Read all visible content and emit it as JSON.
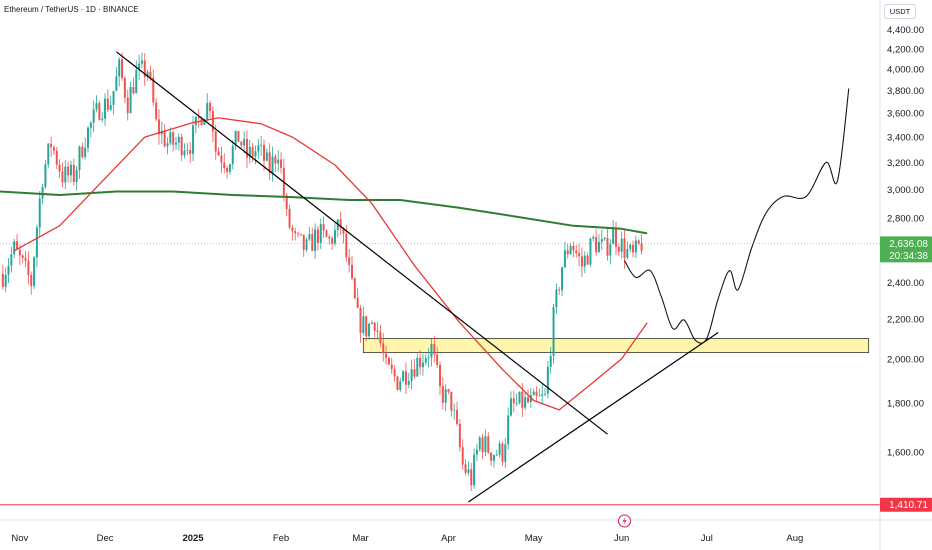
{
  "header": {
    "title": "Ethereum / TetherUS · 1D · BINANCE",
    "currency_button": "USDT"
  },
  "colors": {
    "up": "#26a69a",
    "down": "#ef5350",
    "ma_long": "#2e7d32",
    "ma_short": "#e53935",
    "trendline": "#000000",
    "zone_fill": "#fff59d",
    "support_line": "#f23645",
    "price_tag": "#4caf50",
    "support_tag": "#f23645"
  },
  "price_tags": {
    "current_price": "2,636.08",
    "countdown": "20:34:38",
    "support_price": "1,410.71"
  },
  "icons": {
    "event_marker": "lightning-icon"
  },
  "chart_data": {
    "type": "candlestick",
    "title": "Ethereum / TetherUS · 1D · BINANCE",
    "xlabel": "",
    "ylabel": "",
    "y_scale": "log",
    "ylim": [
      1360,
      4720
    ],
    "xlim": [
      "2024-10-25",
      "2025-08-31"
    ],
    "y_ticks": [
      "1,600.00",
      "1,800.00",
      "2,000.00",
      "2,200.00",
      "2,400.00",
      "2,600.00",
      "2,800.00",
      "3,000.00",
      "3,200.00",
      "3,400.00",
      "3,600.00",
      "3,800.00",
      "4,000.00",
      "4,200.00",
      "4,400.00"
    ],
    "y_tick_values": [
      1600,
      1800,
      2000,
      2200,
      2400,
      2600,
      2800,
      3000,
      3200,
      3400,
      3600,
      3800,
      4000,
      4200,
      4400
    ],
    "x_ticks": [
      {
        "date": "2024-11-01",
        "label": "Nov"
      },
      {
        "date": "2024-12-01",
        "label": "Dec"
      },
      {
        "date": "2025-01-01",
        "label": "2025"
      },
      {
        "date": "2025-02-01",
        "label": "Feb"
      },
      {
        "date": "2025-03-01",
        "label": "Mar"
      },
      {
        "date": "2025-04-01",
        "label": "Apr"
      },
      {
        "date": "2025-05-01",
        "label": "May"
      },
      {
        "date": "2025-06-01",
        "label": "Jun"
      },
      {
        "date": "2025-07-01",
        "label": "Jul"
      },
      {
        "date": "2025-08-01",
        "label": "Aug"
      }
    ],
    "price_path": [
      [
        "2024-10-26",
        2450
      ],
      [
        "2024-10-30",
        2600
      ],
      [
        "2024-11-05",
        2400
      ],
      [
        "2024-11-09",
        3100
      ],
      [
        "2024-11-12",
        3350
      ],
      [
        "2024-11-16",
        3100
      ],
      [
        "2024-11-20",
        3100
      ],
      [
        "2024-11-24",
        3400
      ],
      [
        "2024-11-29",
        3650
      ],
      [
        "2024-12-03",
        3700
      ],
      [
        "2024-12-06",
        4000
      ],
      [
        "2024-12-09",
        3700
      ],
      [
        "2024-12-12",
        3950
      ],
      [
        "2024-12-16",
        4000
      ],
      [
        "2024-12-19",
        3500
      ],
      [
        "2024-12-23",
        3350
      ],
      [
        "2024-12-27",
        3350
      ],
      [
        "2024-12-31",
        3350
      ],
      [
        "2025-01-04",
        3600
      ],
      [
        "2025-01-07",
        3700
      ],
      [
        "2025-01-09",
        3300
      ],
      [
        "2025-01-13",
        3200
      ],
      [
        "2025-01-17",
        3400
      ],
      [
        "2025-01-20",
        3250
      ],
      [
        "2025-01-24",
        3300
      ],
      [
        "2025-01-28",
        3150
      ],
      [
        "2025-01-31",
        3300
      ],
      [
        "2025-02-03",
        2800
      ],
      [
        "2025-02-06",
        2650
      ],
      [
        "2025-02-10",
        2600
      ],
      [
        "2025-02-14",
        2700
      ],
      [
        "2025-02-18",
        2650
      ],
      [
        "2025-02-22",
        2750
      ],
      [
        "2025-02-25",
        2450
      ],
      [
        "2025-02-28",
        2200
      ],
      [
        "2025-03-03",
        2150
      ],
      [
        "2025-03-06",
        2200
      ],
      [
        "2025-03-10",
        1950
      ],
      [
        "2025-03-14",
        1900
      ],
      [
        "2025-03-18",
        1950
      ],
      [
        "2025-03-22",
        2000
      ],
      [
        "2025-03-26",
        2050
      ],
      [
        "2025-03-29",
        1850
      ],
      [
        "2025-04-02",
        1800
      ],
      [
        "2025-04-06",
        1550
      ],
      [
        "2025-04-09",
        1500
      ],
      [
        "2025-04-12",
        1650
      ],
      [
        "2025-04-16",
        1600
      ],
      [
        "2025-04-20",
        1600
      ],
      [
        "2025-04-23",
        1780
      ],
      [
        "2025-04-27",
        1800
      ],
      [
        "2025-05-01",
        1800
      ],
      [
        "2025-05-05",
        1820
      ],
      [
        "2025-05-08",
        2200
      ],
      [
        "2025-05-11",
        2500
      ],
      [
        "2025-05-14",
        2650
      ],
      [
        "2025-05-18",
        2500
      ],
      [
        "2025-05-22",
        2650
      ],
      [
        "2025-05-26",
        2600
      ],
      [
        "2025-05-29",
        2700
      ],
      [
        "2025-06-02",
        2600
      ],
      [
        "2025-06-05",
        2550
      ],
      [
        "2025-06-08",
        2640
      ]
    ],
    "series": [
      {
        "name": "",
        "color": "#2e7d32",
        "values": [
          [
            "2024-10-25",
            2985
          ],
          [
            "2024-11-15",
            2960
          ],
          [
            "2024-12-05",
            2985
          ],
          [
            "2024-12-25",
            2985
          ],
          [
            "2025-01-15",
            2960
          ],
          [
            "2025-02-05",
            2945
          ],
          [
            "2025-02-25",
            2925
          ],
          [
            "2025-03-15",
            2925
          ],
          [
            "2025-04-05",
            2870
          ],
          [
            "2025-04-25",
            2810
          ],
          [
            "2025-05-15",
            2750
          ],
          [
            "2025-06-01",
            2730
          ],
          [
            "2025-06-10",
            2700
          ]
        ]
      },
      {
        "name": "",
        "color": "#e53935",
        "values": [
          [
            "2024-10-30",
            2590
          ],
          [
            "2024-11-15",
            2750
          ],
          [
            "2024-12-01",
            3080
          ],
          [
            "2024-12-15",
            3400
          ],
          [
            "2025-01-01",
            3520
          ],
          [
            "2025-01-10",
            3560
          ],
          [
            "2025-01-25",
            3510
          ],
          [
            "2025-02-05",
            3400
          ],
          [
            "2025-02-20",
            3180
          ],
          [
            "2025-03-05",
            2900
          ],
          [
            "2025-03-20",
            2500
          ],
          [
            "2025-04-05",
            2180
          ],
          [
            "2025-04-20",
            1950
          ],
          [
            "2025-05-01",
            1810
          ],
          [
            "2025-05-10",
            1770
          ],
          [
            "2025-05-20",
            1870
          ],
          [
            "2025-06-01",
            2000
          ],
          [
            "2025-06-10",
            2180
          ]
        ]
      }
    ],
    "drawings": {
      "descending_trendline": [
        [
          "2024-12-05",
          4170
        ],
        [
          "2025-05-27",
          1670
        ]
      ],
      "ascending_trendline": [
        [
          "2025-04-08",
          1420
        ],
        [
          "2025-07-05",
          2130
        ]
      ],
      "support_zone": {
        "x": [
          "2025-03-02",
          "2025-08-27"
        ],
        "y": [
          2030,
          2100
        ]
      },
      "support_level": 1410.71,
      "projection_path": [
        [
          "2025-06-02",
          2530
        ],
        [
          "2025-06-06",
          2430
        ],
        [
          "2025-06-11",
          2470
        ],
        [
          "2025-06-15",
          2320
        ],
        [
          "2025-06-19",
          2150
        ],
        [
          "2025-06-23",
          2195
        ],
        [
          "2025-06-27",
          2090
        ],
        [
          "2025-07-01",
          2100
        ],
        [
          "2025-07-05",
          2310
        ],
        [
          "2025-07-09",
          2470
        ],
        [
          "2025-07-12",
          2360
        ],
        [
          "2025-07-17",
          2620
        ],
        [
          "2025-07-22",
          2840
        ],
        [
          "2025-07-28",
          2950
        ],
        [
          "2025-08-05",
          2950
        ],
        [
          "2025-08-12",
          3200
        ],
        [
          "2025-08-16",
          3060
        ],
        [
          "2025-08-20",
          3820
        ]
      ]
    }
  }
}
